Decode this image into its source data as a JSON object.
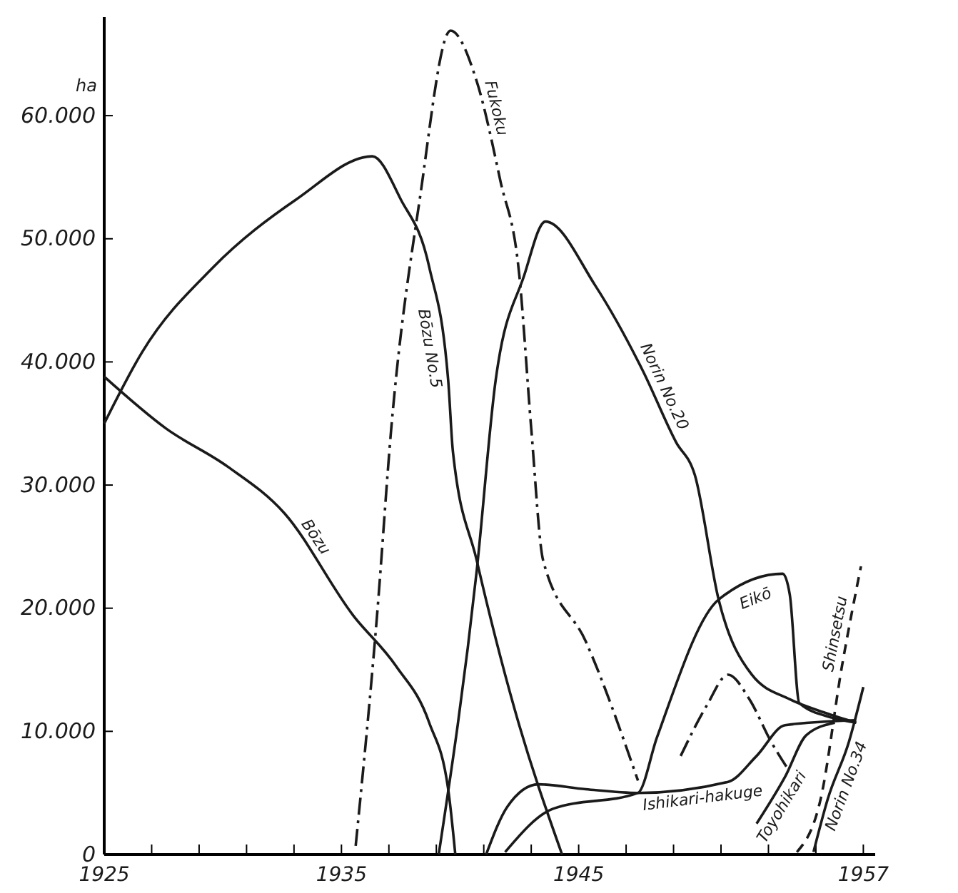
{
  "chart_data": {
    "type": "line",
    "ylabel": "ha",
    "xlim": [
      1925,
      1957.5
    ],
    "ylim": [
      0,
      68000
    ],
    "xticks": [
      1925,
      {
        "value": 1927,
        "label": null
      },
      {
        "value": 1929,
        "label": null
      },
      {
        "value": 1931,
        "label": null
      },
      {
        "value": 1933,
        "label": null
      },
      1935,
      {
        "value": 1937,
        "label": null
      },
      {
        "value": 1939,
        "label": null
      },
      {
        "value": 1941,
        "label": null
      },
      {
        "value": 1943,
        "label": null
      },
      1945,
      {
        "value": 1947,
        "label": null
      },
      {
        "value": 1949,
        "label": null
      },
      {
        "value": 1951,
        "label": null
      },
      {
        "value": 1953,
        "label": null
      },
      {
        "value": 1955,
        "label": null
      },
      1957
    ],
    "yticks": [
      0,
      {
        "value": 10000,
        "label": "10.000"
      },
      {
        "value": 20000,
        "label": "20.000"
      },
      {
        "value": 30000,
        "label": "30.000"
      },
      {
        "value": 40000,
        "label": "40.000"
      },
      {
        "value": 50000,
        "label": "50.000"
      },
      {
        "value": 60000,
        "label": "60.000"
      }
    ],
    "grid": false,
    "legend": false,
    "marker": "none",
    "series": [
      {
        "name": "Bōzu",
        "color": "#1a1a1a",
        "line_style": "solid",
        "x": [
          1925,
          1927.6,
          1930.2,
          1932.6,
          1935.5,
          1937.3,
          1938.7,
          1939.5,
          1939.8
        ],
        "values": [
          38800,
          34600,
          31500,
          27700,
          19400,
          15300,
          10700,
          5300,
          0
        ]
      },
      {
        "name": "Bōzu No.5",
        "color": "#1a1a1a",
        "line_style": "solid",
        "x": [
          1925,
          1926.6,
          1929.6,
          1933.1,
          1936.3,
          1937.5,
          1938.7,
          1939.5,
          1939.7,
          1940.7,
          1942.3,
          1944.3
        ],
        "values": [
          35000,
          40800,
          47700,
          53200,
          56700,
          53200,
          47700,
          38500,
          32700,
          23900,
          11800,
          0
        ]
      },
      {
        "name": "Fukoku",
        "color": "#1a1a1a",
        "line_style": "dashdot",
        "x": [
          1935.6,
          1936.5,
          1937.1,
          1938.3,
          1939.6,
          1940.7,
          1941.7,
          1942.5,
          1943,
          1943.5,
          1945.3,
          1947.5
        ],
        "values": [
          700,
          19400,
          34600,
          53200,
          66900,
          62800,
          54700,
          47000,
          34600,
          23900,
          17300,
          6000
        ]
      },
      {
        "name": "Norin No.20",
        "color": "#1a1a1a",
        "line_style": "solid",
        "x": [
          1939.1,
          1940.7,
          1941.5,
          1942.7,
          1943.6,
          1945.7,
          1947.7,
          1949.1,
          1949.9,
          1950.9,
          1952.3,
          1953.9,
          1955.4,
          1956.7
        ],
        "values": [
          0,
          23000,
          38500,
          47000,
          51400,
          46200,
          39300,
          33500,
          30800,
          20700,
          14600,
          12600,
          11500,
          10700
        ]
      },
      {
        "name": "Eikō",
        "color": "#1a1a1a",
        "line_style": "solid",
        "x": [
          1941.9,
          1943.9,
          1947.5,
          1948.3,
          1950.9,
          1953.6,
          1953.9,
          1954.3,
          1955.7,
          1956.7
        ],
        "values": [
          200,
          3700,
          5000,
          9500,
          20700,
          22800,
          21100,
          12300,
          11100,
          10700
        ]
      },
      {
        "name": "Ishikari-hakuge",
        "color": "#1a1a1a",
        "line_style": "solid",
        "x": [
          1941.1,
          1942,
          1943.3,
          1945.3,
          1947.5,
          1951.3,
          1952.5,
          1953.7,
          1956.7
        ],
        "values": [
          0,
          3900,
          5700,
          5300,
          5000,
          5900,
          8000,
          10500,
          10900
        ]
      },
      {
        "color": "#1a1a1a",
        "line_style": "dashdot",
        "x": [
          1949.3,
          1950.4,
          1951.3,
          1952.2,
          1953.1,
          1953.8
        ],
        "values": [
          8000,
          12100,
          14600,
          12600,
          9200,
          7000
        ]
      },
      {
        "name": "Toyohikari",
        "color": "#1a1a1a",
        "line_style": "solid",
        "x": [
          1952.5,
          1953.7,
          1954.6,
          1955.8
        ],
        "values": [
          2500,
          6300,
          9700,
          10700
        ]
      },
      {
        "name": "Shinsetsu",
        "color": "#1a1a1a",
        "line_style": "dashed",
        "x": [
          1954.2,
          1955.2,
          1956.1,
          1956.9
        ],
        "values": [
          200,
          4500,
          15300,
          23400
        ]
      },
      {
        "name": "Norin No.34",
        "color": "#1a1a1a",
        "line_style": "solid",
        "x": [
          1954.9,
          1955.5,
          1956.4,
          1957
        ],
        "values": [
          200,
          4500,
          9200,
          13600
        ]
      }
    ]
  }
}
